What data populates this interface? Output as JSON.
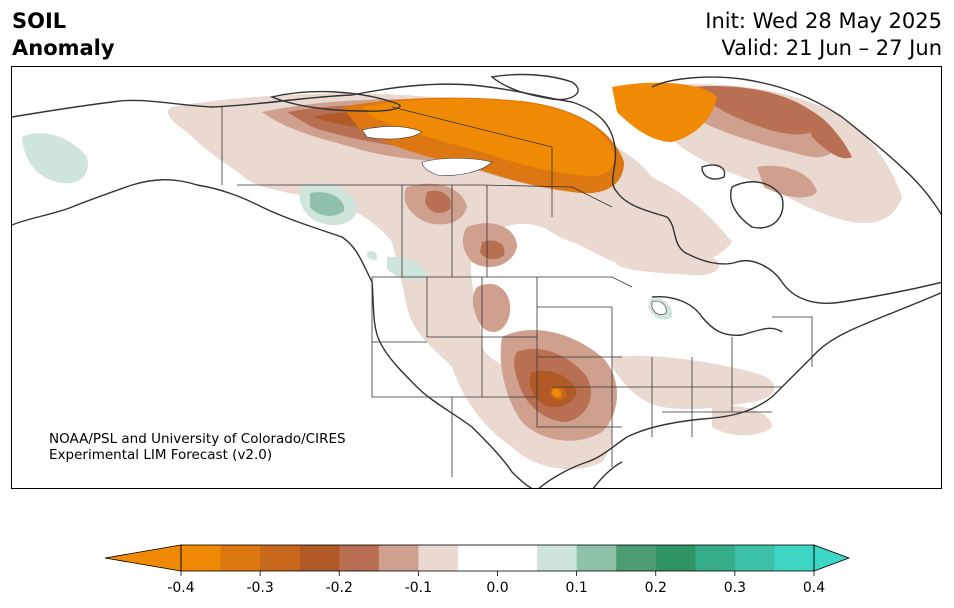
{
  "title": {
    "variable": "SOIL",
    "kind": "Anomaly",
    "init": "Init: Wed 28 May 2025",
    "valid": "Valid: 21 Jun – 27 Jun"
  },
  "credit": {
    "line1": "NOAA/PSL and University of Colorado/CIRES",
    "line2": "Experimental LIM Forecast (v2.0)"
  },
  "colorbar": {
    "ticks": [
      "-0.4",
      "-0.3",
      "-0.2",
      "-0.1",
      "0.0",
      "0.1",
      "0.2",
      "0.3",
      "0.4"
    ],
    "below_color": "#f08a05",
    "above_color": "#3dd6c4",
    "bins": [
      {
        "range": [
          -0.4,
          -0.35
        ],
        "color": "#f08a05"
      },
      {
        "range": [
          -0.35,
          -0.3
        ],
        "color": "#dc7712"
      },
      {
        "range": [
          -0.3,
          -0.25
        ],
        "color": "#c8681c"
      },
      {
        "range": [
          -0.25,
          -0.2
        ],
        "color": "#b15a27"
      },
      {
        "range": [
          -0.2,
          -0.15
        ],
        "color": "#b86f52"
      },
      {
        "range": [
          -0.15,
          -0.1
        ],
        "color": "#cfa08e"
      },
      {
        "range": [
          -0.1,
          -0.05
        ],
        "color": "#ead9d1"
      },
      {
        "range": [
          -0.05,
          0.05
        ],
        "color": "#ffffff"
      },
      {
        "range": [
          0.05,
          0.1
        ],
        "color": "#cfe5dc"
      },
      {
        "range": [
          0.1,
          0.15
        ],
        "color": "#8ec1a8"
      },
      {
        "range": [
          0.15,
          0.2
        ],
        "color": "#4e9d72"
      },
      {
        "range": [
          0.2,
          0.25
        ],
        "color": "#2f9366"
      },
      {
        "range": [
          0.25,
          0.3
        ],
        "color": "#35ab8a"
      },
      {
        "range": [
          0.3,
          0.35
        ],
        "color": "#3cc0a6"
      },
      {
        "range": [
          0.35,
          0.4
        ],
        "color": "#3dd6c4"
      }
    ]
  },
  "map": {
    "region": "North America",
    "coastline_color": "#333333"
  }
}
